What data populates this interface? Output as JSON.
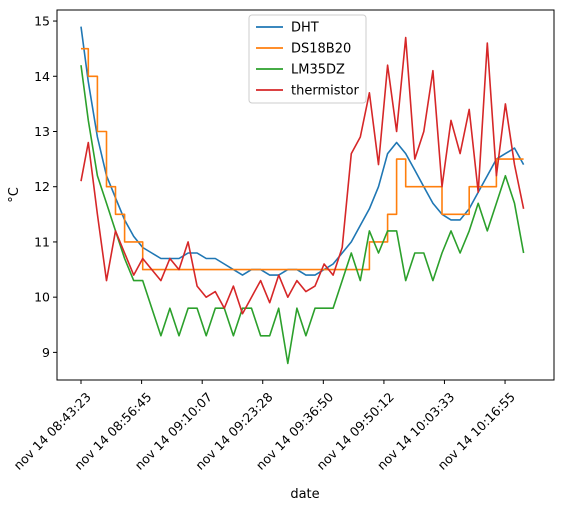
{
  "chart_data": {
    "type": "line",
    "xlabel": "date",
    "ylabel": "°C",
    "x_ticks": [
      "nov 14 08:43:23",
      "nov 14 08:56:45",
      "nov 14 09:10:07",
      "nov 14 09:23:28",
      "nov 14 09:36:50",
      "nov 14 09:50:12",
      "nov 14 10:03:33",
      "nov 14 10:16:55"
    ],
    "y_ticks": [
      9,
      10,
      11,
      12,
      13,
      14,
      15
    ],
    "ylim": [
      8.5,
      15.2
    ],
    "grid": false,
    "legend_position": "top-center",
    "x": [
      "08:43:23",
      "08:45:00",
      "08:47:00",
      "08:49:00",
      "08:51:00",
      "08:53:00",
      "08:55:00",
      "08:57:00",
      "08:59:00",
      "09:01:00",
      "09:03:00",
      "09:05:00",
      "09:07:00",
      "09:09:00",
      "09:11:00",
      "09:13:00",
      "09:15:00",
      "09:17:00",
      "09:19:00",
      "09:21:00",
      "09:23:00",
      "09:25:00",
      "09:27:00",
      "09:29:00",
      "09:31:00",
      "09:33:00",
      "09:35:00",
      "09:37:00",
      "09:39:00",
      "09:41:00",
      "09:43:00",
      "09:45:00",
      "09:47:00",
      "09:49:00",
      "09:51:00",
      "09:53:00",
      "09:55:00",
      "09:57:00",
      "09:59:00",
      "10:01:00",
      "10:03:00",
      "10:05:00",
      "10:07:00",
      "10:09:00",
      "10:11:00",
      "10:13:00",
      "10:15:00",
      "10:17:00",
      "10:19:00",
      "10:21:00"
    ],
    "series": [
      {
        "name": "DHT",
        "color": "#1f77b4",
        "values": [
          14.9,
          13.9,
          12.9,
          12.2,
          11.8,
          11.4,
          11.1,
          10.9,
          10.8,
          10.7,
          10.7,
          10.7,
          10.8,
          10.8,
          10.7,
          10.7,
          10.6,
          10.5,
          10.4,
          10.5,
          10.5,
          10.4,
          10.4,
          10.5,
          10.5,
          10.4,
          10.4,
          10.5,
          10.6,
          10.8,
          11.0,
          11.3,
          11.6,
          12.0,
          12.6,
          12.8,
          12.6,
          12.3,
          12.0,
          11.7,
          11.5,
          11.4,
          11.4,
          11.6,
          11.9,
          12.2,
          12.5,
          12.6,
          12.7,
          12.4
        ]
      },
      {
        "name": "DS18B20",
        "color": "#ff7f0e",
        "values": [
          14.5,
          14.0,
          13.0,
          12.0,
          11.5,
          11.0,
          11.0,
          10.5,
          10.5,
          10.5,
          10.5,
          10.5,
          10.5,
          10.5,
          10.5,
          10.5,
          10.5,
          10.5,
          10.5,
          10.5,
          10.5,
          10.5,
          10.5,
          10.5,
          10.5,
          10.5,
          10.5,
          10.5,
          10.5,
          10.5,
          10.5,
          10.5,
          11.0,
          11.0,
          11.5,
          12.5,
          12.0,
          12.0,
          12.0,
          12.0,
          11.5,
          11.5,
          11.5,
          12.0,
          12.0,
          12.0,
          12.5,
          12.5,
          12.5,
          12.5
        ]
      },
      {
        "name": "LM35DZ",
        "color": "#2ca02c",
        "values": [
          14.2,
          13.2,
          12.2,
          11.7,
          11.2,
          10.7,
          10.3,
          10.3,
          9.8,
          9.3,
          9.8,
          9.3,
          9.8,
          9.8,
          9.3,
          9.8,
          9.8,
          9.3,
          9.8,
          9.8,
          9.3,
          9.3,
          9.8,
          8.8,
          9.8,
          9.3,
          9.8,
          9.8,
          9.8,
          10.3,
          10.8,
          10.3,
          11.2,
          10.8,
          11.2,
          11.2,
          10.3,
          10.8,
          10.8,
          10.3,
          10.8,
          11.2,
          10.8,
          11.2,
          11.7,
          11.2,
          11.7,
          12.2,
          11.7,
          10.8
        ]
      },
      {
        "name": "thermistor",
        "color": "#d62728",
        "values": [
          12.1,
          12.8,
          11.5,
          10.3,
          11.2,
          10.8,
          10.4,
          10.7,
          10.5,
          10.3,
          10.7,
          10.5,
          11.0,
          10.2,
          10.0,
          10.1,
          9.8,
          10.2,
          9.7,
          10.0,
          10.3,
          9.9,
          10.4,
          10.0,
          10.3,
          10.1,
          10.2,
          10.6,
          10.4,
          10.9,
          12.6,
          12.9,
          13.7,
          12.4,
          14.2,
          13.0,
          14.7,
          12.5,
          13.0,
          14.1,
          12.0,
          13.2,
          12.6,
          13.4,
          11.9,
          14.6,
          12.2,
          13.5,
          12.4,
          11.6
        ]
      }
    ]
  }
}
